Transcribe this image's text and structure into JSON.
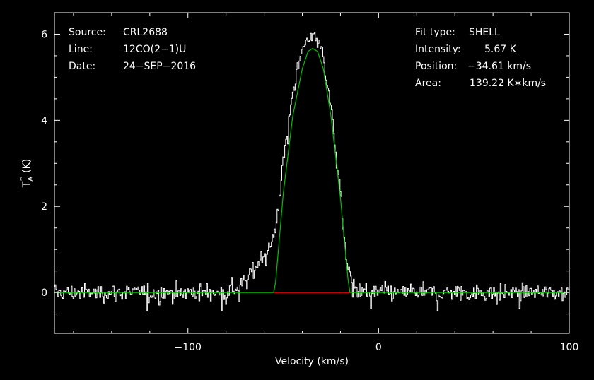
{
  "chart_data": {
    "type": "line",
    "xlabel": "Velocity (km/s)",
    "ylabel": {
      "main": "T",
      "sub": "A",
      "sup": "*",
      "unit": "(K)"
    },
    "xlim": [
      -170,
      100
    ],
    "ylim": [
      -0.95,
      6.5
    ],
    "x_ticks": [
      -100,
      0,
      100
    ],
    "x_tick_labels": [
      "−100",
      "0",
      "100"
    ],
    "y_ticks": [
      0,
      2,
      4,
      6
    ],
    "y_tick_labels": [
      "0",
      "2",
      "4",
      "6"
    ],
    "grid": false,
    "info_left": [
      {
        "key": "Source:",
        "value": "CRL2688"
      },
      {
        "key": "Line:",
        "value": "12CO(2−1)U"
      },
      {
        "key": "Date:",
        "value": "24−SEP−2016"
      }
    ],
    "info_right": [
      {
        "key": "Fit type:",
        "value": "SHELL"
      },
      {
        "key": "Intensity:",
        "value": "5.67 K"
      },
      {
        "key": "Position:",
        "value": "−34.61 km/s"
      },
      {
        "key": "Area:",
        "value": "139.22 K∗km/s"
      }
    ],
    "spectrum": {
      "color": "#ffffff",
      "channel_width_kms": 0.5,
      "noise_rms": 0.14,
      "x": [
        -170,
        -80,
        -72,
        -66,
        -62,
        -58,
        -56,
        -54,
        -50,
        -45,
        -40,
        -37,
        -35,
        -32,
        -29,
        -25,
        -20,
        -17,
        -15,
        -12,
        -5,
        100
      ],
      "y": [
        0,
        0,
        0.15,
        0.5,
        0.8,
        1.0,
        1.1,
        1.5,
        3.0,
        4.7,
        5.6,
        5.9,
        6.0,
        5.9,
        5.5,
        4.3,
        2.3,
        0.9,
        0.35,
        0.1,
        0,
        0
      ]
    },
    "fit": {
      "color": "#00c000",
      "x": [
        -170,
        -55,
        -54,
        -50,
        -45,
        -40,
        -37,
        -34.6,
        -32,
        -29,
        -25,
        -20,
        -16,
        -15,
        100
      ],
      "y": [
        0,
        0,
        0.25,
        2.3,
        4.1,
        5.2,
        5.6,
        5.67,
        5.6,
        5.2,
        4.1,
        2.2,
        0.3,
        0,
        0
      ]
    },
    "window": {
      "color": "#ff0000",
      "x": [
        -55,
        -15
      ],
      "y": 0
    }
  }
}
